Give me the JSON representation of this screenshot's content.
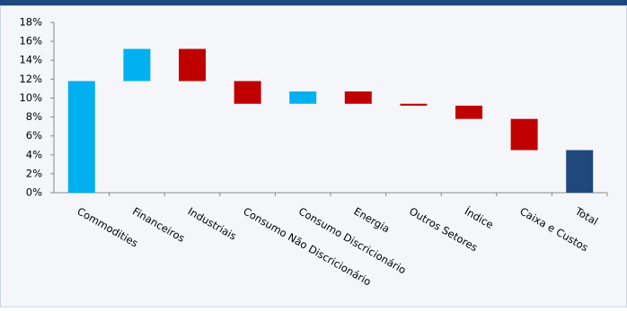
{
  "chart_data": {
    "type": "waterfall",
    "categories": [
      "Commodities",
      "Financeiros",
      "Industriais",
      "Consumo Não Discricionário",
      "Consumo Discricionário",
      "Energia",
      "Outros Setores",
      "Índice",
      "Caixa e Custos",
      "Total"
    ],
    "values": [
      11.8,
      3.4,
      -3.4,
      -2.4,
      1.3,
      -1.3,
      -0.2,
      -1.4,
      -3.3,
      4.5
    ],
    "is_total": [
      false,
      false,
      false,
      false,
      false,
      false,
      false,
      false,
      false,
      true
    ],
    "increase_color": "#00b0f0",
    "decrease_color": "#c00000",
    "total_color": "#1f497d",
    "ylim": [
      0,
      18
    ],
    "yticks": [
      {
        "value": 0,
        "label": "0%"
      },
      {
        "value": 2,
        "label": "2%"
      },
      {
        "value": 4,
        "label": "4%"
      },
      {
        "value": 6,
        "label": "6%"
      },
      {
        "value": 8,
        "label": "8%"
      },
      {
        "value": 10,
        "label": "10%"
      },
      {
        "value": 12,
        "label": "12%"
      },
      {
        "value": 14,
        "label": "14%"
      },
      {
        "value": 16,
        "label": "16%"
      },
      {
        "value": 18,
        "label": "18%"
      }
    ],
    "grid": false
  }
}
